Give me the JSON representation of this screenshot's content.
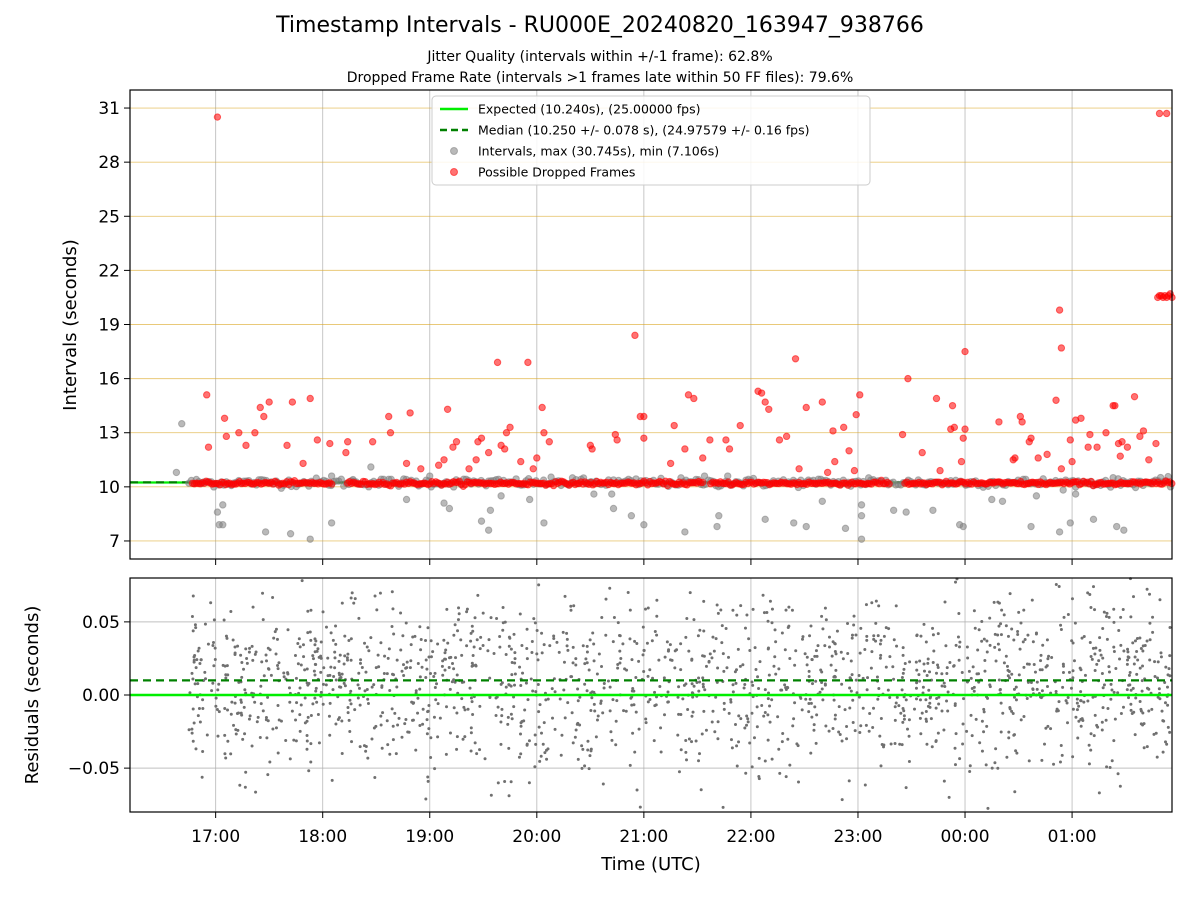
{
  "chart_data": [
    {
      "type": "scatter",
      "panel": "intervals",
      "title": "Timestamp Intervals - RU000E_20240820_163947_938766",
      "subtitle_lines": [
        "Jitter Quality (intervals within +/-1 frame): 62.8%",
        "Dropped Frame Rate (intervals >1 frames late within 50 FF files): 79.6%"
      ],
      "xlabel": "",
      "ylabel": "Intervals (seconds)",
      "ylim": [
        6,
        32
      ],
      "y_ticks": [
        7,
        10,
        13,
        16,
        19,
        22,
        25,
        28,
        31
      ],
      "y_tick_labels": [
        "7",
        "10",
        "13",
        "16",
        "19",
        "22",
        "25",
        "28",
        "31"
      ],
      "xlim_utc": [
        "2024-08-20 16:12",
        "2024-08-21 01:56"
      ],
      "grid": true,
      "legend_position": "top-center",
      "legend": [
        {
          "label": "Expected (10.240s), (25.00000 fps)",
          "style": "solid-line",
          "color": "#00ee00"
        },
        {
          "label": "Median (10.250 +/- 0.078 s), (24.97579 +/- 0.16 fps)",
          "style": "dashed-line",
          "color": "#008000"
        },
        {
          "label": "Intervals, max (30.745s), min (7.106s)",
          "style": "marker",
          "color": "#808080"
        },
        {
          "label": "Possible Dropped Frames",
          "style": "marker",
          "color": "#ff0000"
        }
      ],
      "reference_lines": {
        "expected": 10.24,
        "median": 10.25
      },
      "baseline_band": {
        "x_start": "16:45",
        "x_end": "01:56",
        "y": 10.24
      },
      "series": [
        {
          "name": "Possible Dropped Frames",
          "color": "#ff0000",
          "points": [
            [
              "16:55",
              15.1
            ],
            [
              "16:56",
              12.2
            ],
            [
              "17:01",
              30.5
            ],
            [
              "17:05",
              13.8
            ],
            [
              "17:06",
              12.8
            ],
            [
              "17:13",
              13.0
            ],
            [
              "17:17",
              12.3
            ],
            [
              "17:22",
              13.0
            ],
            [
              "17:25",
              14.4
            ],
            [
              "17:27",
              13.9
            ],
            [
              "17:30",
              14.7
            ],
            [
              "17:40",
              12.3
            ],
            [
              "17:43",
              14.7
            ],
            [
              "17:49",
              11.3
            ],
            [
              "17:53",
              14.9
            ],
            [
              "17:57",
              12.6
            ],
            [
              "18:04",
              12.4
            ],
            [
              "18:13",
              11.9
            ],
            [
              "18:14",
              12.5
            ],
            [
              "18:28",
              12.5
            ],
            [
              "18:37",
              13.9
            ],
            [
              "18:38",
              13.0
            ],
            [
              "18:47",
              11.3
            ],
            [
              "18:49",
              14.1
            ],
            [
              "18:55",
              11.0
            ],
            [
              "19:05",
              11.2
            ],
            [
              "19:08",
              11.5
            ],
            [
              "19:10",
              14.3
            ],
            [
              "19:13",
              12.2
            ],
            [
              "19:15",
              12.5
            ],
            [
              "19:22",
              11.0
            ],
            [
              "19:26",
              11.5
            ],
            [
              "19:27",
              12.5
            ],
            [
              "19:29",
              12.7
            ],
            [
              "19:33",
              11.9
            ],
            [
              "19:38",
              16.9
            ],
            [
              "19:40",
              12.3
            ],
            [
              "19:42",
              12.1
            ],
            [
              "19:43",
              13.0
            ],
            [
              "19:45",
              13.3
            ],
            [
              "19:51",
              11.4
            ],
            [
              "19:55",
              16.9
            ],
            [
              "19:58",
              11.0
            ],
            [
              "20:00",
              11.6
            ],
            [
              "20:03",
              14.4
            ],
            [
              "20:04",
              13.0
            ],
            [
              "20:07",
              12.5
            ],
            [
              "20:30",
              12.3
            ],
            [
              "20:31",
              12.1
            ],
            [
              "20:44",
              12.9
            ],
            [
              "20:45",
              12.6
            ],
            [
              "20:55",
              18.4
            ],
            [
              "20:58",
              13.9
            ],
            [
              "21:00",
              12.7
            ],
            [
              "21:00",
              13.9
            ],
            [
              "21:15",
              11.3
            ],
            [
              "21:17",
              13.4
            ],
            [
              "21:23",
              12.1
            ],
            [
              "21:25",
              15.1
            ],
            [
              "21:28",
              14.9
            ],
            [
              "21:33",
              11.6
            ],
            [
              "21:37",
              12.6
            ],
            [
              "21:46",
              12.6
            ],
            [
              "21:48",
              12.1
            ],
            [
              "21:54",
              13.4
            ],
            [
              "22:04",
              15.3
            ],
            [
              "22:06",
              15.2
            ],
            [
              "22:08",
              14.7
            ],
            [
              "22:10",
              14.3
            ],
            [
              "22:16",
              12.6
            ],
            [
              "22:20",
              12.8
            ],
            [
              "22:25",
              17.1
            ],
            [
              "22:27",
              11.0
            ],
            [
              "22:31",
              14.4
            ],
            [
              "22:40",
              14.7
            ],
            [
              "22:43",
              10.8
            ],
            [
              "22:46",
              13.1
            ],
            [
              "22:47",
              11.4
            ],
            [
              "22:52",
              13.3
            ],
            [
              "22:55",
              12.0
            ],
            [
              "22:58",
              10.9
            ],
            [
              "22:59",
              14.0
            ],
            [
              "23:01",
              15.1
            ],
            [
              "23:25",
              12.9
            ],
            [
              "23:28",
              16.0
            ],
            [
              "23:36",
              11.9
            ],
            [
              "23:44",
              14.9
            ],
            [
              "23:46",
              10.9
            ],
            [
              "23:52",
              13.2
            ],
            [
              "23:53",
              14.5
            ],
            [
              "23:54",
              13.3
            ],
            [
              "23:58",
              11.4
            ],
            [
              "23:59",
              12.7
            ],
            [
              "00:00",
              17.5
            ],
            [
              "00:00",
              13.2
            ],
            [
              "00:19",
              13.6
            ],
            [
              "00:27",
              11.5
            ],
            [
              "00:28",
              11.6
            ],
            [
              "00:31",
              13.9
            ],
            [
              "00:32",
              13.6
            ],
            [
              "00:36",
              12.5
            ],
            [
              "00:37",
              12.7
            ],
            [
              "00:41",
              11.6
            ],
            [
              "00:46",
              11.8
            ],
            [
              "00:51",
              14.8
            ],
            [
              "00:54",
              11.0
            ],
            [
              "00:59",
              12.6
            ],
            [
              "01:00",
              11.4
            ],
            [
              "01:02",
              13.7
            ],
            [
              "01:05",
              13.8
            ],
            [
              "01:09",
              12.2
            ],
            [
              "01:10",
              12.9
            ],
            [
              "01:14",
              12.2
            ],
            [
              "01:19",
              13.0
            ],
            [
              "01:23",
              14.5
            ],
            [
              "01:24",
              14.5
            ],
            [
              "01:26",
              12.4
            ],
            [
              "01:27",
              11.7
            ],
            [
              "01:28",
              12.5
            ],
            [
              "01:31",
              12.2
            ],
            [
              "01:35",
              15.0
            ],
            [
              "01:38",
              12.8
            ],
            [
              "01:40",
              13.1
            ],
            [
              "01:43",
              11.5
            ],
            [
              "01:47",
              12.4
            ],
            [
              "01:49",
              30.7
            ],
            [
              "01:53",
              30.7
            ],
            [
              "00:53",
              19.8
            ],
            [
              "00:54",
              17.7
            ],
            [
              "01:48",
              20.5
            ],
            [
              "01:49",
              20.6
            ],
            [
              "01:50",
              20.6
            ],
            [
              "01:51",
              20.5
            ],
            [
              "01:52",
              20.6
            ],
            [
              "01:53",
              20.5
            ],
            [
              "01:54",
              20.6
            ],
            [
              "01:55",
              20.7
            ],
            [
              "01:56",
              20.5
            ]
          ]
        },
        {
          "name": "Intervals, max (30.745s), min (7.106s)",
          "color": "#808080",
          "points": [
            [
              "16:38",
              10.8
            ],
            [
              "16:41",
              13.5
            ],
            [
              "17:01",
              8.6
            ],
            [
              "17:02",
              7.9
            ],
            [
              "17:04",
              9.0
            ],
            [
              "17:04",
              7.9
            ],
            [
              "17:28",
              7.5
            ],
            [
              "17:42",
              7.4
            ],
            [
              "17:53",
              7.1
            ],
            [
              "18:05",
              8.0
            ],
            [
              "18:05",
              10.6
            ],
            [
              "18:17",
              10.4
            ],
            [
              "18:27",
              11.1
            ],
            [
              "18:47",
              9.3
            ],
            [
              "19:00",
              10.6
            ],
            [
              "19:08",
              9.1
            ],
            [
              "19:11",
              8.8
            ],
            [
              "19:29",
              8.1
            ],
            [
              "19:33",
              7.6
            ],
            [
              "19:34",
              8.7
            ],
            [
              "19:40",
              9.5
            ],
            [
              "19:56",
              9.3
            ],
            [
              "20:04",
              8.0
            ],
            [
              "20:20",
              10.5
            ],
            [
              "20:32",
              9.6
            ],
            [
              "20:42",
              9.6
            ],
            [
              "20:43",
              8.8
            ],
            [
              "20:53",
              8.4
            ],
            [
              "21:00",
              7.9
            ],
            [
              "21:23",
              7.5
            ],
            [
              "21:34",
              10.6
            ],
            [
              "21:41",
              7.8
            ],
            [
              "21:42",
              8.4
            ],
            [
              "21:47",
              10.6
            ],
            [
              "22:08",
              8.2
            ],
            [
              "22:24",
              8.0
            ],
            [
              "22:31",
              7.8
            ],
            [
              "22:40",
              9.2
            ],
            [
              "22:53",
              7.7
            ],
            [
              "23:02",
              8.4
            ],
            [
              "23:02",
              9.0
            ],
            [
              "23:02",
              7.1
            ],
            [
              "23:06",
              10.5
            ],
            [
              "23:20",
              8.7
            ],
            [
              "23:27",
              8.6
            ],
            [
              "23:42",
              8.7
            ],
            [
              "23:57",
              7.9
            ],
            [
              "23:59",
              7.8
            ],
            [
              "00:15",
              9.3
            ],
            [
              "00:21",
              9.2
            ],
            [
              "00:37",
              7.8
            ],
            [
              "00:40",
              9.5
            ],
            [
              "00:53",
              7.5
            ],
            [
              "00:59",
              8.0
            ],
            [
              "01:02",
              9.6
            ],
            [
              "01:12",
              8.2
            ],
            [
              "01:25",
              7.8
            ],
            [
              "01:29",
              7.6
            ]
          ]
        }
      ]
    },
    {
      "type": "scatter",
      "panel": "residuals",
      "title": "",
      "xlabel": "Time (UTC)",
      "ylabel": "Residuals (seconds)",
      "ylim": [
        -0.08,
        0.08
      ],
      "y_ticks": [
        -0.05,
        0.0,
        0.05
      ],
      "y_tick_labels": [
        "−0.05",
        "0.00",
        "0.05"
      ],
      "x_tick_labels": [
        "17:00",
        "18:00",
        "19:00",
        "20:00",
        "21:00",
        "22:00",
        "23:00",
        "00:00",
        "01:00"
      ],
      "xlim_utc": [
        "2024-08-20 16:12",
        "2024-08-21 01:56"
      ],
      "grid": true,
      "reference_lines": {
        "expected": 0.0,
        "median": 0.01
      },
      "series": [
        {
          "name": "",
          "color": "#808080",
          "x_start": "16:45",
          "x_end": "01:55",
          "count": 1750,
          "distribution": {
            "center": 0.008,
            "spread": 0.03,
            "range": [
              -0.08,
              0.08
            ]
          }
        }
      ]
    }
  ]
}
